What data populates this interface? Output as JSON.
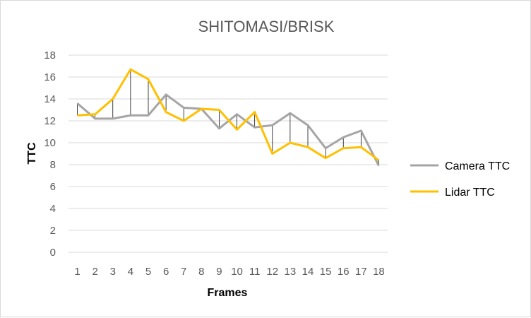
{
  "chart_data": {
    "type": "line",
    "title": "SHITOMASI/BRISK",
    "xlabel": "Frames",
    "ylabel": "TTC",
    "categories": [
      "1",
      "2",
      "3",
      "4",
      "5",
      "6",
      "7",
      "8",
      "9",
      "10",
      "11",
      "12",
      "13",
      "14",
      "15",
      "16",
      "17",
      "18"
    ],
    "ylim": [
      0,
      18
    ],
    "yticks": [
      "0",
      "2",
      "4",
      "6",
      "8",
      "10",
      "12",
      "14",
      "16",
      "18"
    ],
    "grid": true,
    "legend_position": "right",
    "drop_lines": true,
    "series": [
      {
        "name": "Camera TTC",
        "color": "#a5a5a5",
        "values": [
          13.6,
          12.2,
          12.2,
          12.5,
          12.5,
          14.4,
          13.2,
          13.1,
          11.3,
          12.6,
          11.4,
          11.6,
          12.7,
          11.6,
          9.5,
          10.5,
          11.1,
          7.9
        ]
      },
      {
        "name": "Lidar TTC",
        "color": "#ffc000",
        "values": [
          12.5,
          12.6,
          14.0,
          16.7,
          15.8,
          12.8,
          12.0,
          13.1,
          13.0,
          11.2,
          12.8,
          9.0,
          10.0,
          9.6,
          8.6,
          9.5,
          9.6,
          8.4
        ]
      }
    ]
  }
}
